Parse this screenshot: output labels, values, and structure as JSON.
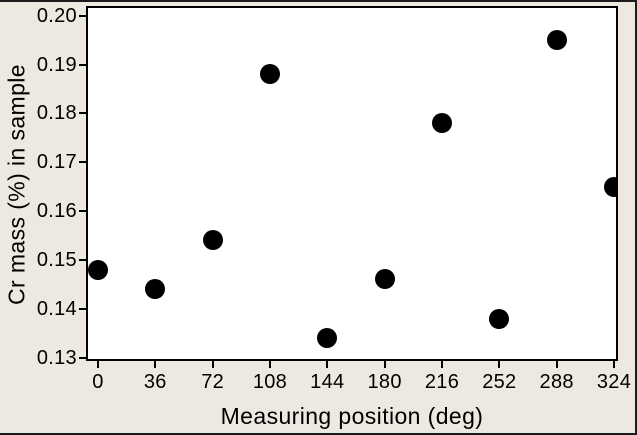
{
  "figure": {
    "background_color": "#EDE9E0",
    "plot_background_color": "#FFFFFF",
    "frame_color": "#000000",
    "text_color": "#000000"
  },
  "chart_data": {
    "type": "scatter",
    "title": "",
    "xlabel": "Measuring position (deg)",
    "ylabel": "Cr mass (%) in sample",
    "x": [
      0,
      36,
      72,
      108,
      144,
      180,
      216,
      252,
      288,
      324
    ],
    "y": [
      0.148,
      0.144,
      0.154,
      0.188,
      0.134,
      0.146,
      0.178,
      0.138,
      0.195,
      0.165
    ],
    "marker": {
      "shape": "circle",
      "color": "#000000"
    },
    "xlim": [
      -7.5,
      326.5
    ],
    "ylim": [
      0.1293,
      0.202
    ],
    "xticks": {
      "values": [
        0,
        36,
        72,
        108,
        144,
        180,
        216,
        252,
        288,
        324
      ],
      "labels": [
        "0",
        "36",
        "72",
        "108",
        "144",
        "180",
        "216",
        "252",
        "288",
        "324"
      ]
    },
    "yticks": {
      "values": [
        0.13,
        0.14,
        0.15,
        0.16,
        0.17,
        0.18,
        0.19,
        0.2
      ],
      "labels": [
        "0.13",
        "0.14",
        "0.15",
        "0.16",
        "0.17",
        "0.18",
        "0.19",
        "0.20"
      ]
    },
    "grid": false,
    "legend": null
  }
}
